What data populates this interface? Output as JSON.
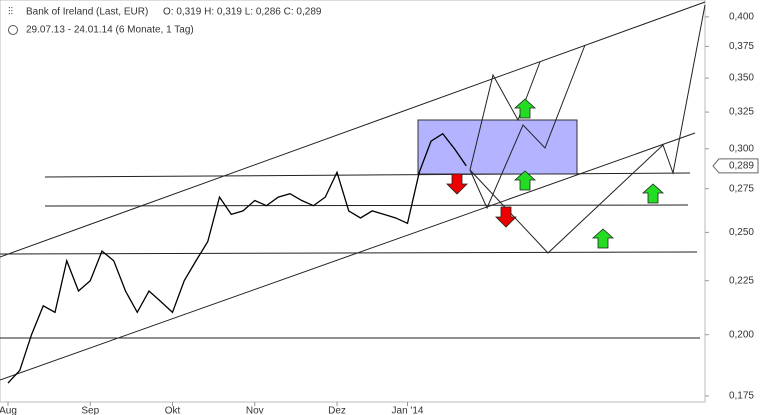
{
  "chart_data": {
    "type": "line",
    "title": "Bank of Ireland (Last, EUR)",
    "subtitle": "O: 0,319  H: 0,319  L: 0,286  C: 0,289",
    "period": "29.07.13 - 24.01.14 (6 Monate, 1 Tag)",
    "categories": [
      "Aug",
      null,
      null,
      null,
      null,
      null,
      null,
      "Sep",
      null,
      null,
      null,
      null,
      null,
      null,
      "Okt",
      null,
      null,
      null,
      null,
      null,
      null,
      "Nov",
      null,
      null,
      null,
      null,
      null,
      null,
      "Dez",
      null,
      null,
      null,
      null,
      null,
      "Jan '14",
      null,
      null,
      null,
      null,
      null
    ],
    "series": [
      {
        "name": "Bank of Ireland (Last, EUR)",
        "color": "#000000",
        "values": [
          0.18,
          0.185,
          0.2,
          0.213,
          0.21,
          0.235,
          0.22,
          0.225,
          0.24,
          0.235,
          0.22,
          0.21,
          0.22,
          0.215,
          0.21,
          0.225,
          0.235,
          0.245,
          0.27,
          0.26,
          0.262,
          0.268,
          0.265,
          0.27,
          0.272,
          0.268,
          0.265,
          0.27,
          0.285,
          0.262,
          0.258,
          0.262,
          0.26,
          0.258,
          0.255,
          0.285,
          0.305,
          0.31,
          0.3,
          0.289
        ]
      }
    ],
    "last_price": {
      "value": 0.289,
      "label": "0,289"
    },
    "log_scale": true,
    "ylim": [
      0.1727,
      0.415
    ],
    "yticks": [
      {
        "value": 0.175,
        "label": "0,175"
      },
      {
        "value": 0.2,
        "label": "0,200"
      },
      {
        "value": 0.225,
        "label": "0,225"
      },
      {
        "value": 0.25,
        "label": "0,250"
      },
      {
        "value": 0.275,
        "label": "0,275"
      },
      {
        "value": 0.3,
        "label": "0,300"
      },
      {
        "value": 0.325,
        "label": "0,325"
      },
      {
        "value": 0.35,
        "label": "0,350"
      },
      {
        "value": 0.375,
        "label": "0,375"
      },
      {
        "value": 0.4,
        "label": "0,400"
      }
    ]
  }
}
